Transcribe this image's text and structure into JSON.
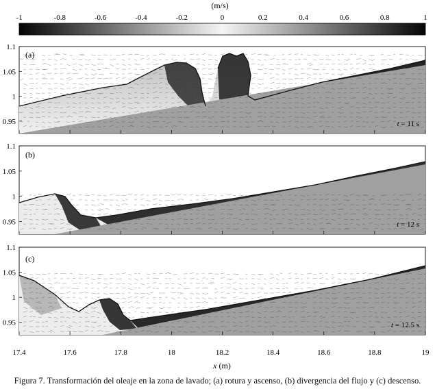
{
  "colorbar": {
    "unit_label": "(m/s)",
    "range": [
      -1,
      1
    ],
    "ticks": [
      "-1",
      "-0.8",
      "-0.6",
      "-0.4",
      "-0.2",
      "0",
      "0.2",
      "0.4",
      "0.6",
      "0.8",
      "1"
    ],
    "tick_values": [
      -1,
      -0.8,
      -0.6,
      -0.4,
      -0.2,
      0,
      0.2,
      0.4,
      0.6,
      0.8,
      1
    ]
  },
  "panels": [
    {
      "label": "(a)",
      "time_prefix": "t",
      "time_value": " = 11 s"
    },
    {
      "label": "(b)",
      "time_prefix": "t",
      "time_value": " = 12 s"
    },
    {
      "label": "(c)",
      "time_prefix": "t",
      "time_value": " = 12.5 s"
    }
  ],
  "y_ticks": [
    "1.1",
    "1.05",
    "1",
    "0.95"
  ],
  "y_tick_values": [
    1.1,
    1.05,
    1.0,
    0.95
  ],
  "x_ticks": [
    "17.4",
    "17.6",
    "17.8",
    "18",
    "18.2",
    "18.4",
    "18.6",
    "18.8",
    "19"
  ],
  "x_tick_values": [
    17.4,
    17.6,
    17.8,
    18.0,
    18.2,
    18.4,
    18.6,
    18.8,
    19.0
  ],
  "x_label_var": "x",
  "x_label_unit": " (m)",
  "caption": "Figura 7. Transformación del oleaje en la zona de lavado; (a) rotura y ascenso, (b) divergencia del flujo y (c) descenso.",
  "colors": {
    "bed": "#a0a0a0",
    "water_light": "#f4f4f4",
    "water_dark": "#1a1a1a",
    "free_surface": "#111111",
    "background": "#ffffff"
  }
}
